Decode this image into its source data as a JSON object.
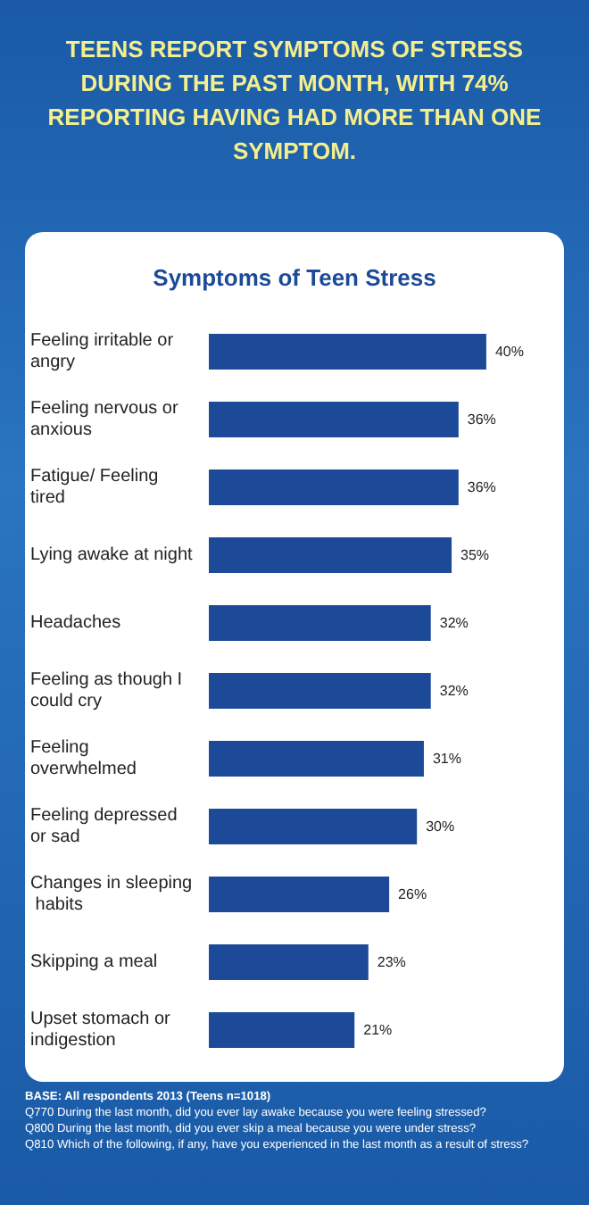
{
  "chart_data": {
    "type": "bar",
    "orientation": "horizontal",
    "title": "TEENS REPORT SYMPTOMS OF STRESS DURING THE PAST MONTH, WITH 74% REPORTING HAVING HAD MORE THAN ONE SYMPTOM.",
    "subtitle": "Symptoms of Teen Stress",
    "categories": [
      "Feeling irritable or angry",
      "Feeling nervous or anxious",
      "Fatigue/ Feeling tired",
      "Lying awake at night",
      "Headaches",
      "Feeling as though I could cry",
      "Feeling overwhelmed",
      "Feeling depressed or sad",
      "Changes in sleeping habits",
      "Skipping a meal",
      "Upset stomach or indigestion"
    ],
    "values": [
      40,
      36,
      36,
      35,
      32,
      32,
      31,
      30,
      26,
      23,
      21
    ],
    "value_labels": [
      "40%",
      "36%",
      "36%",
      "35%",
      "32%",
      "32%",
      "31%",
      "30%",
      "26%",
      "23%",
      "21%"
    ],
    "color": "#1c4a98",
    "grid": false,
    "annotations": [
      "BASE: All respondents 2013 (Teens n=1018)",
      "Q770 During the last month, did you ever lay awake because you were feeling stressed?",
      "Q800 During the last month, did you ever skip a meal because you were under stress?",
      "Q810 Which of the following, if any, have you experienced in the last month as a result of stress?"
    ]
  }
}
